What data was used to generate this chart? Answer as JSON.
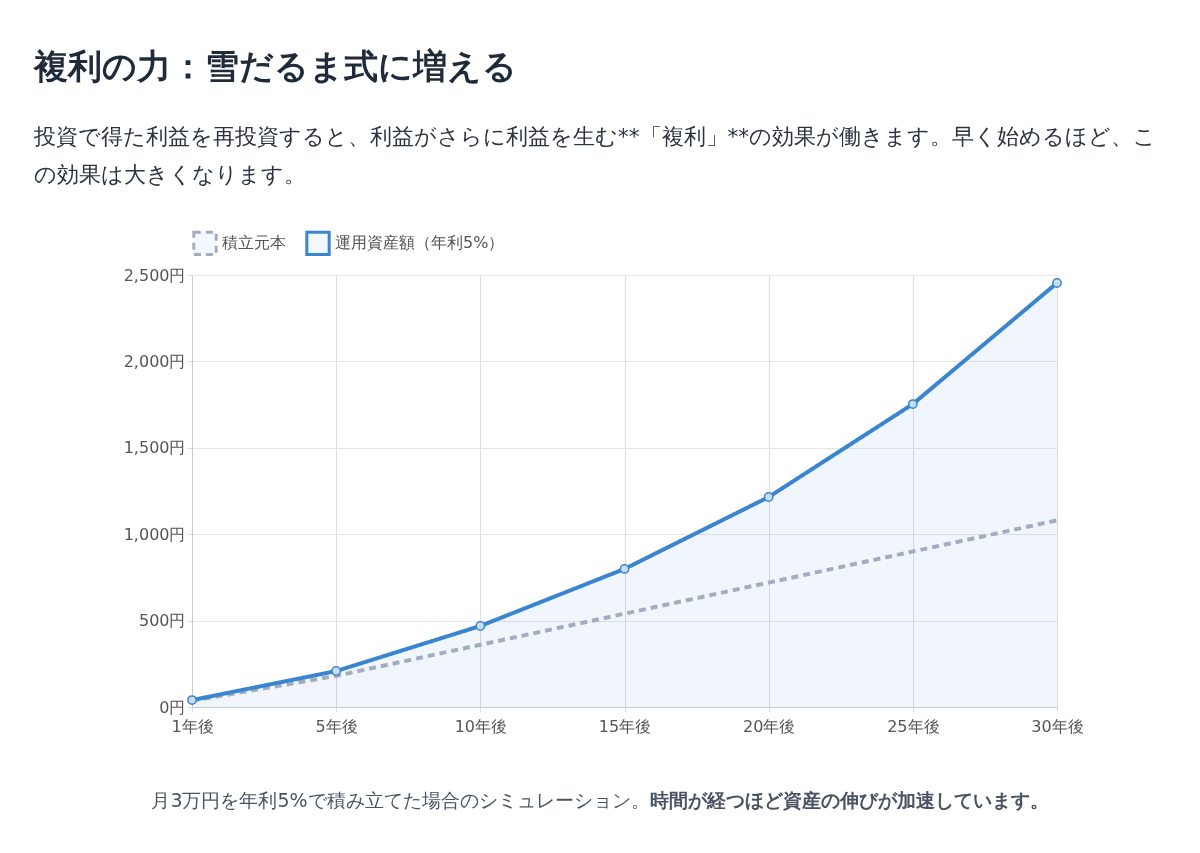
{
  "chart_data": {
    "type": "line",
    "title": "複利の力：雪だるま式に増える",
    "subtitle": "投資で得た利益を再投資すると、利益がさらに利益を生む**「複利」**の効果が働きます。早く始めるほど、この効果は大きくなります。",
    "categories": [
      "1年後",
      "5年後",
      "10年後",
      "15年後",
      "20年後",
      "25年後",
      "30年後"
    ],
    "series": [
      {
        "name": "積立元本",
        "color": "#a3adc2",
        "line_style": "dashed",
        "marker": "none",
        "values": [
          36,
          180,
          360,
          540,
          720,
          900,
          1080
        ]
      },
      {
        "name": "運用資産額（年利5%）",
        "type": "area",
        "color": "#3a85d0",
        "line_style": "solid",
        "marker": "circle",
        "values": [
          40,
          208,
          469,
          799,
          1215,
          1753,
          2454
        ]
      }
    ],
    "ylim": [
      0,
      2500
    ],
    "yticks": [
      {
        "value": 0,
        "label": "0円"
      },
      {
        "value": 500,
        "label": "500円"
      },
      {
        "value": 1000,
        "label": "1,000円"
      },
      {
        "value": 1500,
        "label": "1,500円"
      },
      {
        "value": 2000,
        "label": "2,000円"
      },
      {
        "value": 2500,
        "label": "2,500円"
      }
    ],
    "grid": true,
    "legend": "top",
    "annotations": [
      "月3万円を年利5%で積み立てた場合のシミュレーション。",
      "時間が経つほど資産の伸びが加速しています。"
    ]
  }
}
